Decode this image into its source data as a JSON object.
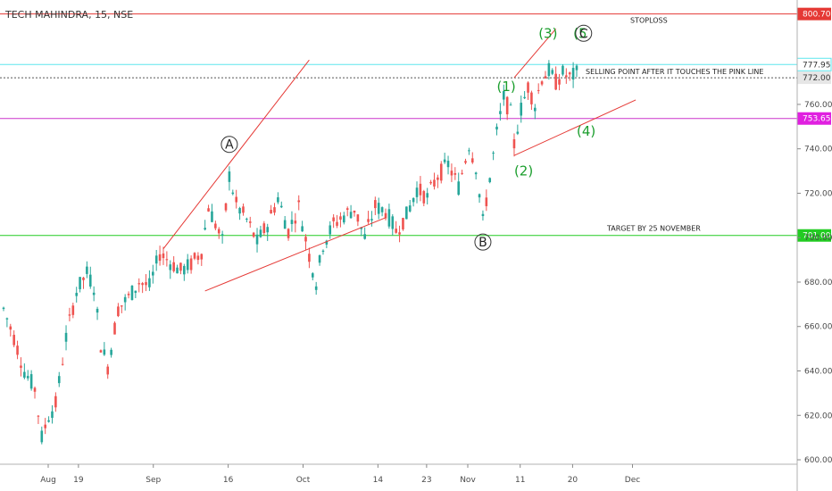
{
  "chart_data": {
    "type": "candlestick",
    "title": "TECH MAHINDRA, 15, NSE",
    "ylim": [
      600,
      800.7
    ],
    "y_ticks": [
      {
        "label": "600.00",
        "value": 600
      },
      {
        "label": "620.00",
        "value": 620
      },
      {
        "label": "640.00",
        "value": 640
      },
      {
        "label": "660.00",
        "value": 660
      },
      {
        "label": "680.00",
        "value": 680
      },
      {
        "label": "700.00",
        "value": 700
      },
      {
        "label": "720.00",
        "value": 720
      },
      {
        "label": "740.00",
        "value": 740
      },
      {
        "label": "760.00",
        "value": 760
      }
    ],
    "x_ticks": [
      "Aug",
      "19",
      "Sep",
      "16",
      "Oct",
      "14",
      "23",
      "Nov",
      "11",
      "20",
      "Dec"
    ],
    "x_tick_index": [
      0,
      20,
      40,
      60,
      80,
      100,
      113,
      124,
      138,
      152,
      168
    ],
    "x_count": 186,
    "grid": false,
    "levels": [
      {
        "label": "800.70",
        "value": 800.7,
        "color": "#e53935",
        "badge": "#e53935",
        "badge_text": "#ffffff",
        "note": "STOPLOSS",
        "note_pos": "high"
      },
      {
        "label": "777.95",
        "value": 777.95,
        "color": "#5ee6ee",
        "badge": "#ffffff",
        "badge_text": "#333333",
        "note": "",
        "note_pos": ""
      },
      {
        "label": "772.00",
        "value": 772.0,
        "color": "#555555",
        "dashed": true,
        "badge": "#e6e6e6",
        "badge_text": "#333333",
        "note": "SELLING POINT AFTER IT TOUCHES THE PINK LINE",
        "note_pos": "line"
      },
      {
        "label": "753.65",
        "value": 753.65,
        "color": "#cc33cc",
        "badge": "#e020e0",
        "badge_text": "#ffffff",
        "note": "",
        "note_pos": ""
      },
      {
        "label": "701.00",
        "value": 701.0,
        "color": "#22cc22",
        "badge": "#22cc22",
        "badge_text": "#ffffff",
        "note": "TARGET BY 25 NOVEMBER",
        "note_pos": "line"
      }
    ],
    "trendlines": [
      {
        "x": [
          46,
          88
        ],
        "y": [
          695,
          780
        ]
      },
      {
        "x": [
          58,
          110
        ],
        "y": [
          676,
          709
        ]
      },
      {
        "x": [
          147,
          159
        ],
        "y": [
          772,
          794
        ]
      },
      {
        "x": [
          147,
          182
        ],
        "y": [
          737,
          762
        ]
      }
    ],
    "wave_labels": [
      {
        "text": "(1)",
        "x": 142,
        "y": 766
      },
      {
        "text": "(2)",
        "x": 147,
        "y": 728
      },
      {
        "text": "(3)",
        "x": 154,
        "y": 790
      },
      {
        "text": "(4)",
        "x": 165,
        "y": 746
      },
      {
        "text": "(5",
        "x": 164,
        "y": 790
      }
    ],
    "circle_labels": [
      {
        "text": "A",
        "x": 65,
        "y": 740
      },
      {
        "text": "B",
        "x": 138,
        "y": 696
      },
      {
        "text": "C",
        "x": 167,
        "y": 790
      }
    ],
    "anchors": [
      [
        0,
        668
      ],
      [
        3,
        655
      ],
      [
        6,
        640
      ],
      [
        9,
        632
      ],
      [
        11,
        610
      ],
      [
        13,
        620
      ],
      [
        15,
        625
      ],
      [
        18,
        655
      ],
      [
        21,
        676
      ],
      [
        24,
        684
      ],
      [
        26,
        678
      ],
      [
        28,
        652
      ],
      [
        30,
        642
      ],
      [
        33,
        668
      ],
      [
        36,
        673
      ],
      [
        39,
        680
      ],
      [
        42,
        678
      ],
      [
        45,
        693
      ],
      [
        48,
        689
      ],
      [
        51,
        685
      ],
      [
        54,
        688
      ],
      [
        57,
        694
      ],
      [
        59,
        714
      ],
      [
        61,
        706
      ],
      [
        63,
        698
      ],
      [
        65,
        728
      ],
      [
        67,
        715
      ],
      [
        70,
        708
      ],
      [
        73,
        698
      ],
      [
        76,
        706
      ],
      [
        79,
        718
      ],
      [
        82,
        703
      ],
      [
        85,
        714
      ],
      [
        88,
        692
      ],
      [
        90,
        680
      ],
      [
        92,
        697
      ],
      [
        95,
        706
      ],
      [
        98,
        710
      ],
      [
        101,
        713
      ],
      [
        104,
        700
      ],
      [
        107,
        714
      ],
      [
        110,
        712
      ],
      [
        113,
        703
      ],
      [
        116,
        710
      ],
      [
        119,
        722
      ],
      [
        122,
        718
      ],
      [
        125,
        728
      ],
      [
        128,
        733
      ],
      [
        131,
        723
      ],
      [
        134,
        742
      ],
      [
        136,
        732
      ],
      [
        138,
        707
      ],
      [
        140,
        727
      ],
      [
        142,
        747
      ],
      [
        144,
        763
      ],
      [
        146,
        756
      ],
      [
        147,
        742
      ],
      [
        149,
        758
      ],
      [
        151,
        768
      ],
      [
        153,
        760
      ],
      [
        155,
        772
      ],
      [
        157,
        775
      ],
      [
        159,
        770
      ],
      [
        161,
        774
      ],
      [
        163,
        772
      ],
      [
        165,
        774
      ]
    ],
    "candle_colors": {
      "up": "#26a69a",
      "down": "#ef5350"
    }
  }
}
